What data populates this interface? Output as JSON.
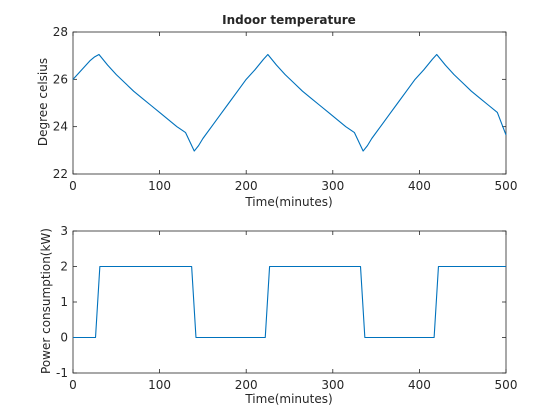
{
  "chart_data": [
    {
      "type": "line",
      "title": "Indoor temperature",
      "xlabel": "Time(minutes)",
      "ylabel": "Degree celsius",
      "xlim": [
        0,
        500
      ],
      "ylim": [
        22,
        28
      ],
      "xticks": [
        0,
        100,
        200,
        300,
        400,
        500
      ],
      "yticks": [
        22,
        24,
        26,
        28
      ],
      "grid": false,
      "series": [
        {
          "color": "#0072bd",
          "x": [
            0,
            5,
            10,
            15,
            20,
            25,
            30,
            40,
            50,
            60,
            70,
            80,
            90,
            100,
            110,
            120,
            130,
            140,
            145,
            150,
            160,
            170,
            180,
            190,
            200,
            210,
            220,
            225,
            235,
            245,
            255,
            265,
            275,
            285,
            295,
            305,
            315,
            325,
            335,
            340,
            345,
            355,
            365,
            375,
            385,
            395,
            405,
            415,
            420,
            430,
            440,
            450,
            460,
            470,
            480,
            490,
            500
          ],
          "y": [
            26.0,
            26.2,
            26.4,
            26.6,
            26.8,
            26.95,
            27.05,
            26.6,
            26.2,
            25.85,
            25.5,
            25.2,
            24.9,
            24.6,
            24.3,
            24.0,
            23.75,
            22.97,
            23.2,
            23.5,
            24.0,
            24.5,
            25.0,
            25.5,
            26.0,
            26.4,
            26.85,
            27.05,
            26.6,
            26.2,
            25.85,
            25.5,
            25.2,
            24.9,
            24.6,
            24.3,
            24.0,
            23.75,
            22.97,
            23.2,
            23.5,
            24.0,
            24.5,
            25.0,
            25.5,
            26.0,
            26.4,
            26.85,
            27.05,
            26.6,
            26.2,
            25.85,
            25.5,
            25.2,
            24.9,
            24.6,
            23.65
          ]
        }
      ]
    },
    {
      "type": "line",
      "title": "",
      "xlabel": "Time(minutes)",
      "ylabel": "Power consumption(kW)",
      "xlim": [
        0,
        500
      ],
      "ylim": [
        -1,
        3
      ],
      "xticks": [
        0,
        100,
        200,
        300,
        400,
        500
      ],
      "yticks": [
        -1,
        0,
        1,
        2,
        3
      ],
      "grid": false,
      "series": [
        {
          "color": "#0072bd",
          "x": [
            0,
            26,
            31,
            137,
            142,
            222,
            227,
            332,
            337,
            417,
            422,
            500
          ],
          "y": [
            0,
            0,
            2,
            2,
            0,
            0,
            2,
            2,
            0,
            0,
            2,
            2
          ]
        }
      ]
    }
  ]
}
